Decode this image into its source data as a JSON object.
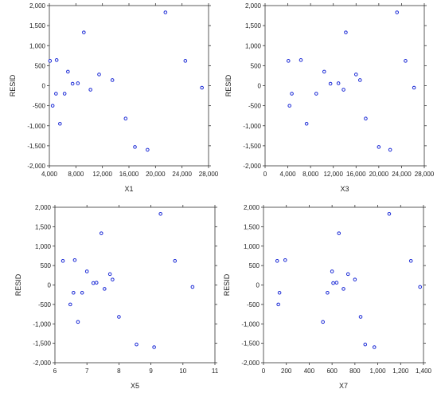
{
  "chart_data": [
    {
      "type": "scatter",
      "xlabel": "X1",
      "ylabel": "RESID",
      "xlim": [
        4000,
        28000
      ],
      "ylim": [
        -2000,
        2000
      ],
      "xticks": [
        4000,
        8000,
        12000,
        16000,
        20000,
        24000,
        28000
      ],
      "xtick_labels": [
        "4,000",
        "8,000",
        "12,000",
        "16,000",
        "20,000",
        "24,000",
        "28,000"
      ],
      "yticks": [
        2000,
        1500,
        1000,
        500,
        0,
        -500,
        -1000,
        -1500,
        -2000
      ],
      "ytick_labels": [
        "2,000",
        "1,500",
        "1,000",
        "500",
        "0",
        "-500",
        "-1,000",
        "-1,500",
        "-2,000"
      ],
      "points": [
        {
          "x": 4100,
          "y": 620
        },
        {
          "x": 4500,
          "y": -500
        },
        {
          "x": 5100,
          "y": 640
        },
        {
          "x": 5000,
          "y": -200
        },
        {
          "x": 5600,
          "y": -950
        },
        {
          "x": 6300,
          "y": -200
        },
        {
          "x": 6800,
          "y": 350
        },
        {
          "x": 7500,
          "y": 50
        },
        {
          "x": 8300,
          "y": 60
        },
        {
          "x": 9200,
          "y": 1330
        },
        {
          "x": 10200,
          "y": -100
        },
        {
          "x": 11500,
          "y": 280
        },
        {
          "x": 13500,
          "y": 140
        },
        {
          "x": 15500,
          "y": -820
        },
        {
          "x": 16900,
          "y": -1530
        },
        {
          "x": 18800,
          "y": -1600
        },
        {
          "x": 21500,
          "y": 1830
        },
        {
          "x": 24500,
          "y": 620
        },
        {
          "x": 27000,
          "y": -50
        }
      ]
    },
    {
      "type": "scatter",
      "xlabel": "X3",
      "ylabel": "RESID",
      "xlim": [
        0,
        28000
      ],
      "ylim": [
        -2000,
        2000
      ],
      "xticks": [
        0,
        4000,
        8000,
        12000,
        16000,
        20000,
        24000,
        28000
      ],
      "xtick_labels": [
        "0",
        "4,000",
        "8,000",
        "12,000",
        "16,000",
        "20,000",
        "24,000",
        "28,000"
      ],
      "yticks": [
        2000,
        1500,
        1000,
        500,
        0,
        -500,
        -1000,
        -1500,
        -2000
      ],
      "ytick_labels": [
        "2,000",
        "1,500",
        "1,000",
        "500",
        "0",
        "-500",
        "-1,000",
        "-1,500",
        "-2,000"
      ],
      "points": [
        {
          "x": 4100,
          "y": 620
        },
        {
          "x": 4300,
          "y": -500
        },
        {
          "x": 4700,
          "y": -200
        },
        {
          "x": 6300,
          "y": 640
        },
        {
          "x": 7300,
          "y": -950
        },
        {
          "x": 9000,
          "y": -200
        },
        {
          "x": 10400,
          "y": 350
        },
        {
          "x": 11500,
          "y": 50
        },
        {
          "x": 12900,
          "y": 60
        },
        {
          "x": 13800,
          "y": -100
        },
        {
          "x": 14200,
          "y": 1330
        },
        {
          "x": 16000,
          "y": 280
        },
        {
          "x": 16700,
          "y": 140
        },
        {
          "x": 17700,
          "y": -820
        },
        {
          "x": 20000,
          "y": -1530
        },
        {
          "x": 22000,
          "y": -1600
        },
        {
          "x": 23200,
          "y": 1830
        },
        {
          "x": 24700,
          "y": 620
        },
        {
          "x": 26200,
          "y": -50
        }
      ]
    },
    {
      "type": "scatter",
      "xlabel": "X5",
      "ylabel": "RESID",
      "xlim": [
        6,
        11
      ],
      "ylim": [
        -2000,
        2000
      ],
      "xticks": [
        6,
        7,
        8,
        9,
        10,
        11
      ],
      "xtick_labels": [
        "6",
        "7",
        "8",
        "9",
        "10",
        "11"
      ],
      "yticks": [
        2000,
        1500,
        1000,
        500,
        0,
        -500,
        -1000,
        -1500,
        -2000
      ],
      "ytick_labels": [
        "2,000",
        "1,500",
        "1,000",
        "500",
        "0",
        "-500",
        "-1,000",
        "-1,500",
        "-2,000"
      ],
      "points": [
        {
          "x": 6.25,
          "y": 620
        },
        {
          "x": 6.48,
          "y": -500
        },
        {
          "x": 6.58,
          "y": -200
        },
        {
          "x": 6.62,
          "y": 640
        },
        {
          "x": 6.72,
          "y": -950
        },
        {
          "x": 6.85,
          "y": -200
        },
        {
          "x": 7.0,
          "y": 350
        },
        {
          "x": 7.2,
          "y": 50
        },
        {
          "x": 7.3,
          "y": 60
        },
        {
          "x": 7.45,
          "y": 1330
        },
        {
          "x": 7.55,
          "y": -100
        },
        {
          "x": 7.72,
          "y": 280
        },
        {
          "x": 7.8,
          "y": 140
        },
        {
          "x": 8.0,
          "y": -820
        },
        {
          "x": 8.55,
          "y": -1530
        },
        {
          "x": 9.1,
          "y": -1600
        },
        {
          "x": 9.3,
          "y": 1830
        },
        {
          "x": 9.75,
          "y": 620
        },
        {
          "x": 10.3,
          "y": -50
        }
      ]
    },
    {
      "type": "scatter",
      "xlabel": "X7",
      "ylabel": "RESID",
      "xlim": [
        0,
        1400
      ],
      "ylim": [
        -2000,
        2000
      ],
      "xticks": [
        0,
        200,
        400,
        600,
        800,
        1000,
        1200,
        1400
      ],
      "xtick_labels": [
        "0",
        "200",
        "400",
        "600",
        "800",
        "1,000",
        "1,200",
        "1,400"
      ],
      "yticks": [
        2000,
        1500,
        1000,
        500,
        0,
        -500,
        -1000,
        -1500,
        -2000
      ],
      "ytick_labels": [
        "2,000",
        "1,500",
        "1,000",
        "500",
        "0",
        "-500",
        "-1,000",
        "-1,500",
        "-2,000"
      ],
      "points": [
        {
          "x": 120,
          "y": 620
        },
        {
          "x": 130,
          "y": -500
        },
        {
          "x": 140,
          "y": -200
        },
        {
          "x": 190,
          "y": 640
        },
        {
          "x": 520,
          "y": -950
        },
        {
          "x": 560,
          "y": -200
        },
        {
          "x": 600,
          "y": 350
        },
        {
          "x": 610,
          "y": 50
        },
        {
          "x": 640,
          "y": 60
        },
        {
          "x": 660,
          "y": 1330
        },
        {
          "x": 700,
          "y": -100
        },
        {
          "x": 740,
          "y": 280
        },
        {
          "x": 800,
          "y": 140
        },
        {
          "x": 850,
          "y": -820
        },
        {
          "x": 890,
          "y": -1530
        },
        {
          "x": 970,
          "y": -1600
        },
        {
          "x": 1100,
          "y": 1830
        },
        {
          "x": 1290,
          "y": 620
        },
        {
          "x": 1370,
          "y": -50
        }
      ]
    }
  ],
  "style": {
    "marker_color": "#1c2bd6",
    "axis_color": "#333333",
    "tick_color": "#222222"
  }
}
